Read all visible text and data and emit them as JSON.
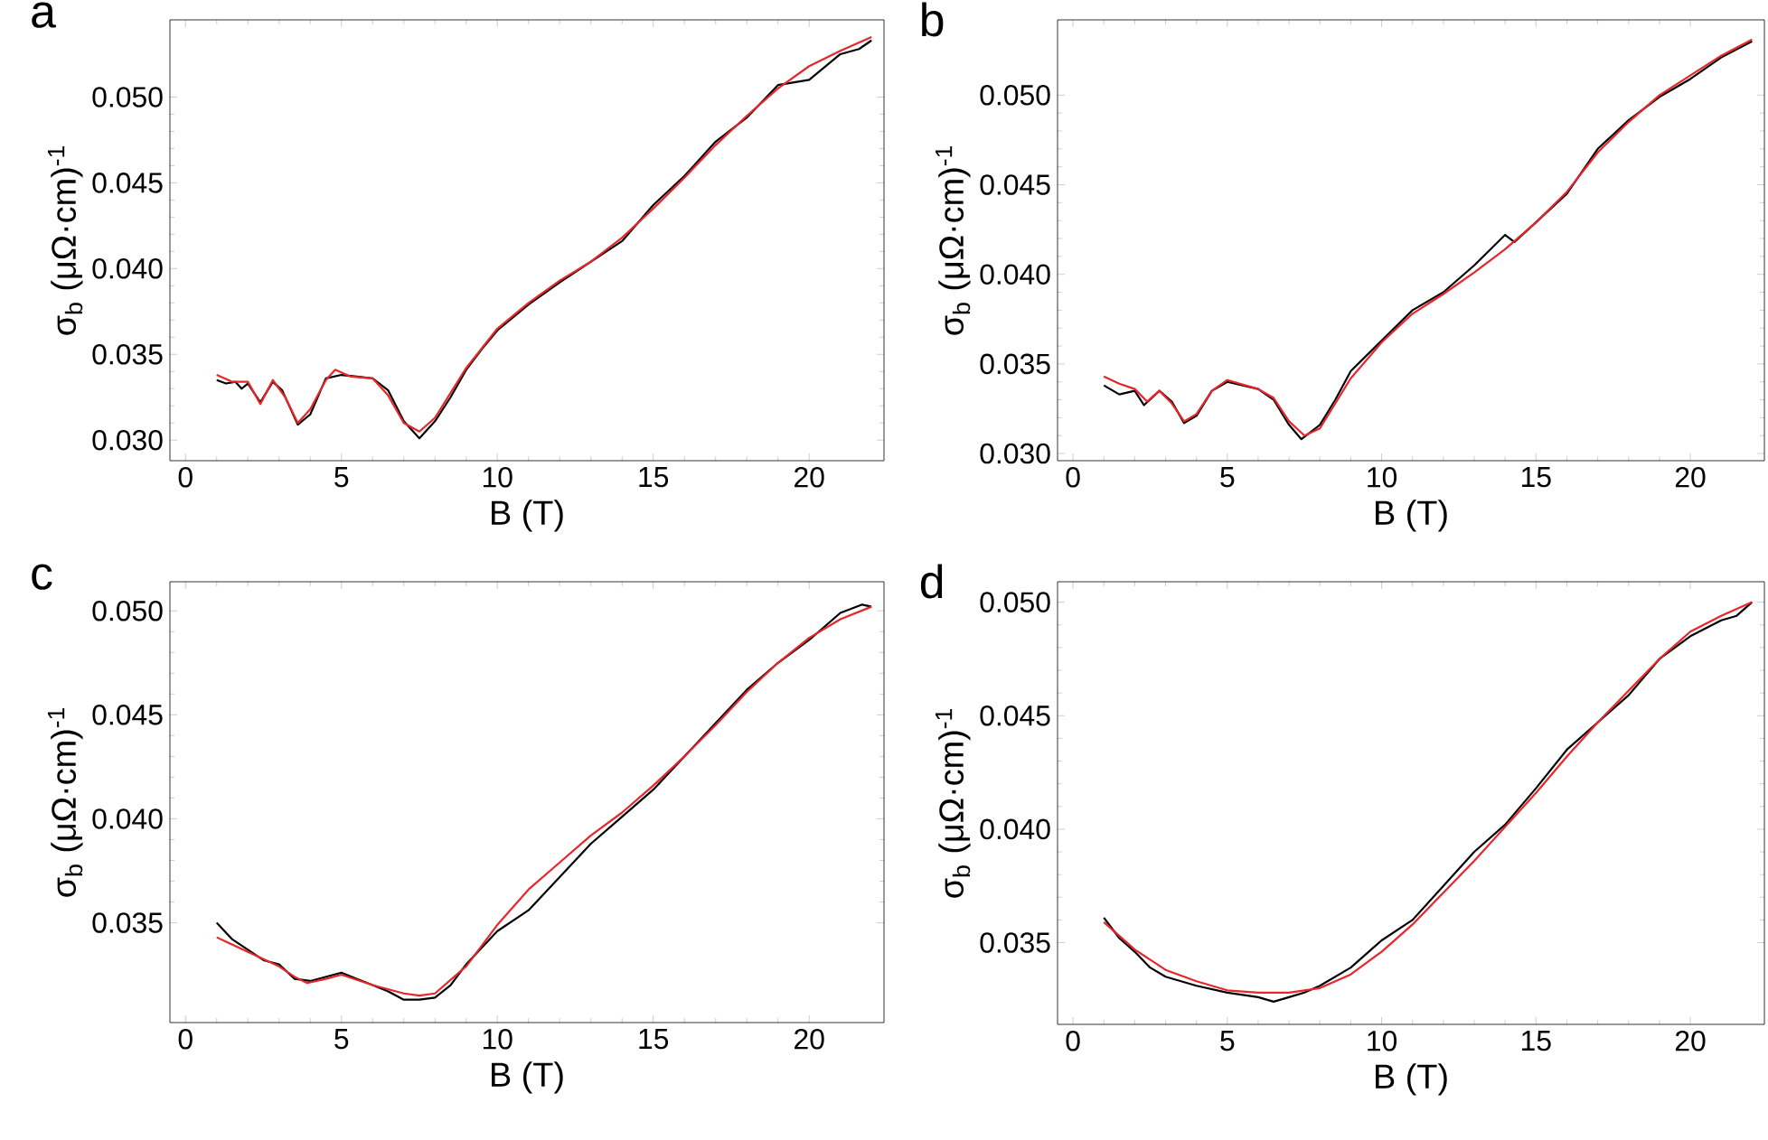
{
  "chart_data": [
    {
      "type": "line",
      "title": "a",
      "xlabel": "B (T)",
      "ylabel": "σ$_{b}$ (μΩ·cm)$^{-1}$",
      "xlim": [
        -0.5,
        22.4
      ],
      "ylim": [
        0.0288,
        0.0545
      ],
      "xticks": [
        0,
        5,
        10,
        15,
        20
      ],
      "yticks": [
        {
          "value": 0.03,
          "label": "0.030"
        },
        {
          "value": 0.035,
          "label": "0.035"
        },
        {
          "value": 0.04,
          "label": "0.040"
        },
        {
          "value": 0.045,
          "label": "0.045"
        },
        {
          "value": 0.05,
          "label": "0.050"
        }
      ],
      "series": [
        {
          "color": "#000000",
          "x": [
            1.0,
            1.3,
            1.6,
            1.8,
            2.0,
            2.4,
            2.8,
            3.1,
            3.6,
            4.0,
            4.5,
            5.0,
            5.5,
            6.0,
            6.5,
            7.0,
            7.5,
            8.0,
            8.5,
            9.0,
            9.5,
            10,
            11,
            12,
            13,
            14,
            15,
            16,
            17,
            18,
            19,
            20,
            21,
            21.6,
            22.0
          ],
          "values": [
            0.0335,
            0.0333,
            0.0334,
            0.033,
            0.0333,
            0.0322,
            0.0334,
            0.0329,
            0.0309,
            0.0315,
            0.0336,
            0.0338,
            0.0337,
            0.0336,
            0.0329,
            0.0311,
            0.0301,
            0.0311,
            0.0325,
            0.0341,
            0.0353,
            0.0364,
            0.0379,
            0.0392,
            0.0404,
            0.0416,
            0.0437,
            0.0454,
            0.0474,
            0.0488,
            0.0507,
            0.051,
            0.0525,
            0.0528,
            0.0533
          ]
        },
        {
          "color": "#e8262a",
          "x": [
            1.0,
            1.5,
            2.0,
            2.4,
            2.8,
            3.2,
            3.6,
            4.0,
            4.5,
            4.8,
            5.3,
            6.0,
            6.5,
            7.0,
            7.5,
            8.0,
            9.0,
            10,
            11,
            12,
            13,
            14,
            15,
            16,
            17,
            18,
            19,
            20,
            21,
            22
          ],
          "values": [
            0.0338,
            0.0334,
            0.0334,
            0.0321,
            0.0335,
            0.0325,
            0.031,
            0.0318,
            0.0335,
            0.0341,
            0.0337,
            0.0336,
            0.0326,
            0.031,
            0.0305,
            0.0313,
            0.0342,
            0.0365,
            0.038,
            0.0393,
            0.0404,
            0.0418,
            0.0435,
            0.0453,
            0.0472,
            0.0489,
            0.0505,
            0.0518,
            0.0527,
            0.0535
          ]
        }
      ]
    },
    {
      "type": "line",
      "title": "b",
      "xlabel": "B (T)",
      "ylabel": "σ$_{b}$ (μΩ·cm)$^{-1}$",
      "xlim": [
        -0.5,
        22.4
      ],
      "ylim": [
        0.0296,
        0.0542
      ],
      "xticks": [
        0,
        5,
        10,
        15,
        20
      ],
      "yticks": [
        {
          "value": 0.03,
          "label": "0.030"
        },
        {
          "value": 0.035,
          "label": "0.035"
        },
        {
          "value": 0.04,
          "label": "0.040"
        },
        {
          "value": 0.045,
          "label": "0.045"
        },
        {
          "value": 0.05,
          "label": "0.050"
        }
      ],
      "series": [
        {
          "color": "#000000",
          "x": [
            1.0,
            1.5,
            2.0,
            2.3,
            2.8,
            3.2,
            3.6,
            4.0,
            4.5,
            5.0,
            6.0,
            6.5,
            7.0,
            7.4,
            8.0,
            8.5,
            9.0,
            10,
            11,
            12,
            13,
            14,
            14.3,
            15,
            16,
            17,
            18,
            19,
            20,
            21,
            22
          ],
          "values": [
            0.0338,
            0.0333,
            0.0335,
            0.0327,
            0.0335,
            0.0329,
            0.0317,
            0.0321,
            0.0335,
            0.034,
            0.0336,
            0.033,
            0.0316,
            0.0308,
            0.0316,
            0.033,
            0.0346,
            0.0363,
            0.038,
            0.039,
            0.0405,
            0.0422,
            0.0418,
            0.0429,
            0.0445,
            0.047,
            0.0486,
            0.0499,
            0.0509,
            0.0521,
            0.053
          ]
        },
        {
          "color": "#e8262a",
          "x": [
            1.0,
            1.5,
            2.0,
            2.4,
            2.8,
            3.2,
            3.6,
            4.0,
            4.5,
            5.0,
            6.0,
            6.5,
            7.0,
            7.5,
            8.0,
            9.0,
            10,
            11,
            12,
            13,
            14,
            15,
            16,
            17,
            18,
            19,
            20,
            21,
            22
          ],
          "values": [
            0.0343,
            0.0339,
            0.0336,
            0.0329,
            0.0335,
            0.0328,
            0.0318,
            0.0322,
            0.0335,
            0.0341,
            0.0336,
            0.0331,
            0.0318,
            0.031,
            0.0314,
            0.0342,
            0.0362,
            0.0378,
            0.0389,
            0.0401,
            0.0414,
            0.0429,
            0.0446,
            0.0468,
            0.0485,
            0.05,
            0.0511,
            0.0522,
            0.0531
          ]
        }
      ]
    },
    {
      "type": "line",
      "title": "c",
      "xlabel": "B (T)",
      "ylabel": "σ$_{b}$ (μΩ·cm)$^{-1}$",
      "xlim": [
        -0.5,
        22.4
      ],
      "ylim": [
        0.0302,
        0.0514
      ],
      "xticks": [
        0,
        5,
        10,
        15,
        20
      ],
      "yticks": [
        {
          "value": 0.035,
          "label": "0.035"
        },
        {
          "value": 0.04,
          "label": "0.040"
        },
        {
          "value": 0.045,
          "label": "0.045"
        },
        {
          "value": 0.05,
          "label": "0.050"
        }
      ],
      "series": [
        {
          "color": "#000000",
          "x": [
            1.0,
            1.5,
            2.0,
            2.5,
            3.0,
            3.5,
            4.0,
            4.5,
            5.0,
            5.5,
            6.0,
            6.5,
            7.0,
            7.5,
            8.0,
            8.5,
            9.0,
            10,
            11,
            12,
            13,
            14,
            15,
            16,
            17,
            18,
            19,
            20,
            21,
            21.7,
            22
          ],
          "values": [
            0.035,
            0.0342,
            0.0337,
            0.0332,
            0.033,
            0.0323,
            0.0322,
            0.0324,
            0.0326,
            0.0323,
            0.032,
            0.0317,
            0.0313,
            0.0313,
            0.0314,
            0.032,
            0.033,
            0.0346,
            0.0356,
            0.0372,
            0.0388,
            0.0401,
            0.0414,
            0.043,
            0.0446,
            0.0462,
            0.0475,
            0.0486,
            0.0499,
            0.0503,
            0.0502
          ]
        },
        {
          "color": "#e8262a",
          "x": [
            1.0,
            2.0,
            3.0,
            3.5,
            3.9,
            4.5,
            5.0,
            6.0,
            7.0,
            7.5,
            8.0,
            9.0,
            10,
            11,
            12,
            13,
            14,
            15,
            16,
            17,
            18,
            19,
            20,
            21,
            22
          ],
          "values": [
            0.0343,
            0.0336,
            0.0329,
            0.0324,
            0.0321,
            0.0323,
            0.0325,
            0.032,
            0.0316,
            0.0315,
            0.0316,
            0.0329,
            0.0349,
            0.0366,
            0.0379,
            0.0392,
            0.0403,
            0.0416,
            0.043,
            0.0445,
            0.0461,
            0.0475,
            0.0487,
            0.0496,
            0.0502
          ]
        }
      ]
    },
    {
      "type": "line",
      "title": "d",
      "xlabel": "B (T)",
      "ylabel": "σ$_{b}$ (μΩ·cm)$^{-1}$",
      "xlim": [
        -0.5,
        22.4
      ],
      "ylim": [
        0.0314,
        0.0509
      ],
      "xticks": [
        0,
        5,
        10,
        15,
        20
      ],
      "yticks": [
        {
          "value": 0.035,
          "label": "0.035"
        },
        {
          "value": 0.04,
          "label": "0.040"
        },
        {
          "value": 0.045,
          "label": "0.045"
        },
        {
          "value": 0.05,
          "label": "0.050"
        }
      ],
      "series": [
        {
          "color": "#000000",
          "x": [
            1.0,
            1.5,
            2.0,
            2.5,
            3.0,
            4.0,
            5.0,
            6.0,
            6.5,
            7.0,
            7.5,
            8.0,
            9.0,
            10,
            11,
            12,
            13,
            14,
            15,
            16,
            17,
            18,
            19,
            20,
            21,
            21.5,
            22
          ],
          "values": [
            0.0361,
            0.0352,
            0.0346,
            0.0339,
            0.0335,
            0.0331,
            0.0328,
            0.0326,
            0.0324,
            0.0326,
            0.0328,
            0.0331,
            0.0339,
            0.0351,
            0.036,
            0.0375,
            0.039,
            0.0402,
            0.0418,
            0.0435,
            0.0447,
            0.0459,
            0.0475,
            0.0485,
            0.0492,
            0.0494,
            0.05
          ]
        },
        {
          "color": "#e8262a",
          "x": [
            1.0,
            2.0,
            3.0,
            4.0,
            5.0,
            6.0,
            7.0,
            8.0,
            9.0,
            10,
            11,
            12,
            13,
            14,
            15,
            16,
            17,
            18,
            19,
            20,
            21,
            22
          ],
          "values": [
            0.0359,
            0.0347,
            0.0338,
            0.0333,
            0.0329,
            0.0328,
            0.0328,
            0.033,
            0.0336,
            0.0346,
            0.0358,
            0.0372,
            0.0386,
            0.0401,
            0.0416,
            0.0432,
            0.0447,
            0.0461,
            0.0475,
            0.0487,
            0.0494,
            0.05
          ]
        }
      ]
    }
  ]
}
